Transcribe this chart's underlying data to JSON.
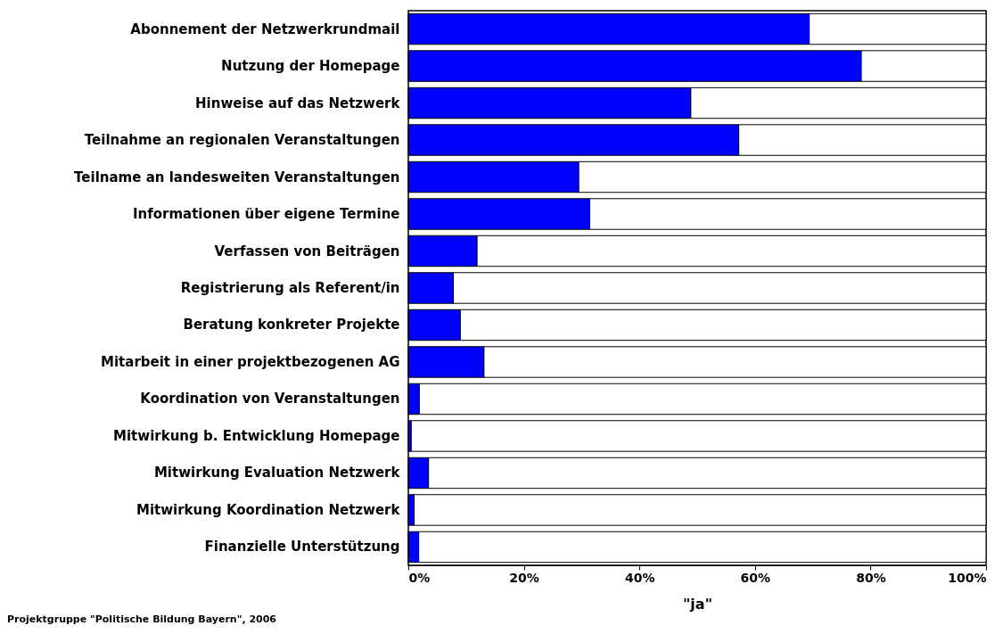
{
  "chart_data": {
    "type": "bar",
    "orientation": "horizontal",
    "stacked": true,
    "xlabel": "\"ja\"",
    "categories": [
      "Abonnement der Netzwerkrundmail",
      "Nutzung der Homepage",
      "Hinweise auf das Netzwerk",
      "Teilnahme  an regionalen Veranstaltungen",
      "Teilname an landesweiten Veranstaltungen",
      "Informationen über eigene Termine",
      "Verfassen von Beiträgen",
      "Registrierung als Referent/in",
      "Beratung konkreter Projekte",
      "Mitarbeit in einer projektbezogenen AG",
      "Koordination von Veranstaltungen",
      "Mitwirkung b. Entwicklung Homepage",
      "Mitwirkung Evaluation Netzwerk",
      "Mitwirkung Koordination Netzwerk",
      "Finanzielle Unterstützung"
    ],
    "series": [
      {
        "color": "#0000ff",
        "values": [
          69.4,
          78.4,
          48.9,
          57.2,
          29.5,
          31.4,
          11.9,
          7.8,
          9.0,
          13.1,
          1.9,
          0.5,
          3.5,
          1.0,
          1.8
        ]
      },
      {
        "color": "#ffffff",
        "values": [
          30.6,
          21.6,
          51.1,
          42.8,
          70.5,
          68.6,
          88.1,
          92.2,
          91.0,
          86.9,
          98.1,
          99.5,
          96.5,
          99.0,
          98.2
        ]
      }
    ],
    "xlim": [
      0,
      100
    ],
    "xticks": [
      {
        "value": 0,
        "label": "0%"
      },
      {
        "value": 20,
        "label": "20%"
      },
      {
        "value": 40,
        "label": "40%"
      },
      {
        "value": 60,
        "label": "60%"
      },
      {
        "value": 80,
        "label": "80%"
      },
      {
        "value": 100,
        "label": "100%"
      }
    ],
    "grid": false,
    "annotations": [
      "Projektgruppe \"Politische Bildung Bayern\", 2006"
    ]
  }
}
